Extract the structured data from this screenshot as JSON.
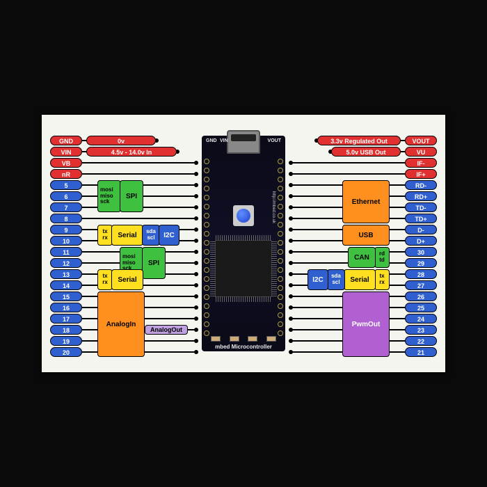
{
  "colors": {
    "red": "#e03030",
    "blue_pin": "#3060d0",
    "green": "#40c040",
    "orange": "#ff9020",
    "yellow": "#ffe020",
    "blue_func": "#3060d0",
    "purple": "#b060d0",
    "lavender": "#c0a0e0",
    "background": "#0a0a0a",
    "card": "#f5f5f0"
  },
  "pcb": {
    "top_left": "GND",
    "top_right": "VOUT",
    "top_vin": "VIN",
    "bottom": "mbed Microcontroller",
    "side": "http://mbed.co.uk"
  },
  "left_pins": [
    {
      "label": "GND",
      "color": "red"
    },
    {
      "label": "VIN",
      "color": "red"
    },
    {
      "label": "VB",
      "color": "red"
    },
    {
      "label": "nR",
      "color": "red"
    },
    {
      "label": "5",
      "color": "blue"
    },
    {
      "label": "6",
      "color": "blue"
    },
    {
      "label": "7",
      "color": "blue"
    },
    {
      "label": "8",
      "color": "blue"
    },
    {
      "label": "9",
      "color": "blue"
    },
    {
      "label": "10",
      "color": "blue"
    },
    {
      "label": "11",
      "color": "blue"
    },
    {
      "label": "12",
      "color": "blue"
    },
    {
      "label": "13",
      "color": "blue"
    },
    {
      "label": "14",
      "color": "blue"
    },
    {
      "label": "15",
      "color": "blue"
    },
    {
      "label": "16",
      "color": "blue"
    },
    {
      "label": "17",
      "color": "blue"
    },
    {
      "label": "18",
      "color": "blue"
    },
    {
      "label": "19",
      "color": "blue"
    },
    {
      "label": "20",
      "color": "blue"
    }
  ],
  "right_pins": [
    {
      "label": "VOUT",
      "color": "red"
    },
    {
      "label": "VU",
      "color": "red"
    },
    {
      "label": "IF-",
      "color": "red"
    },
    {
      "label": "IF+",
      "color": "red"
    },
    {
      "label": "RD-",
      "color": "blue"
    },
    {
      "label": "RD+",
      "color": "blue"
    },
    {
      "label": "TD-",
      "color": "blue"
    },
    {
      "label": "TD+",
      "color": "blue"
    },
    {
      "label": "D-",
      "color": "blue"
    },
    {
      "label": "D+",
      "color": "blue"
    },
    {
      "label": "30",
      "color": "blue"
    },
    {
      "label": "29",
      "color": "blue"
    },
    {
      "label": "28",
      "color": "blue"
    },
    {
      "label": "27",
      "color": "blue"
    },
    {
      "label": "26",
      "color": "blue"
    },
    {
      "label": "25",
      "color": "blue"
    },
    {
      "label": "24",
      "color": "blue"
    },
    {
      "label": "23",
      "color": "blue"
    },
    {
      "label": "22",
      "color": "blue"
    },
    {
      "label": "21",
      "color": "blue"
    }
  ],
  "desc": {
    "gnd": "0v",
    "vin": "4.5v - 14.0v In",
    "vout": "3.3v Regulated Out",
    "vu": "5.0v USB Out"
  },
  "funcs": {
    "spi": "SPI",
    "spi_lines": [
      "mosi",
      "miso",
      "sck"
    ],
    "serial": "Serial",
    "serial_lines": [
      "tx",
      "rx"
    ],
    "i2c": "I2C",
    "i2c_lines": [
      "sda",
      "scl"
    ],
    "analogin": "AnalogIn",
    "analogout": "AnalogOut",
    "ethernet": "Ethernet",
    "usb": "USB",
    "can": "CAN",
    "can_lines": [
      "rd",
      "td"
    ],
    "pwmout": "PwmOut"
  }
}
